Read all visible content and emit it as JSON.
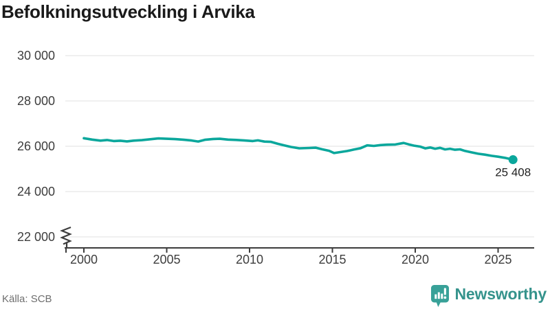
{
  "header": {
    "title": "Befolkningsutveckling i Arvika"
  },
  "footer": {
    "source": "Källa: SCB",
    "brand": "Newsworthy",
    "brand_color": "#35938c",
    "brand_icon": "speech-bubble-bar-chart"
  },
  "chart_data": {
    "type": "line",
    "title": "Befolkningsutveckling i Arvika",
    "xlabel": "",
    "ylabel": "",
    "grid": "horizontal",
    "legend": "none",
    "line_color": "#0ba79c",
    "axis_color": "#3c3c3c",
    "grid_color": "#e2e2e2",
    "x_ticks": [
      2000,
      2005,
      2010,
      2015,
      2020,
      2025
    ],
    "y_ticks": [
      30000,
      28000,
      26000,
      24000,
      22000
    ],
    "y_tick_labels": [
      "30 000",
      "28 000",
      "26 000",
      "24 000",
      "22 000"
    ],
    "axis_break_below": 22000,
    "x_range": [
      1998.9,
      2027.1
    ],
    "series": [
      {
        "name": "Befolkning i Arvika",
        "x": [
          2000.0,
          2000.5,
          2001.0,
          2001.4,
          2001.8,
          2002.2,
          2002.6,
          2003.0,
          2003.5,
          2004.0,
          2004.5,
          2005.0,
          2005.5,
          2006.0,
          2006.5,
          2006.9,
          2007.3,
          2007.8,
          2008.2,
          2008.7,
          2009.2,
          2009.7,
          2010.2,
          2010.5,
          2010.9,
          2011.3,
          2011.7,
          2012.1,
          2012.5,
          2013.0,
          2013.6,
          2014.0,
          2014.4,
          2014.8,
          2015.1,
          2015.5,
          2015.9,
          2016.3,
          2016.7,
          2017.1,
          2017.5,
          2017.9,
          2018.3,
          2018.8,
          2019.3,
          2019.6,
          2019.9,
          2020.3,
          2020.6,
          2020.9,
          2021.2,
          2021.5,
          2021.8,
          2022.1,
          2022.4,
          2022.7,
          2023.0,
          2023.4,
          2023.8,
          2024.2,
          2024.6,
          2025.0,
          2025.4,
          2025.9
        ],
        "values": [
          26355,
          26295,
          26250,
          26275,
          26230,
          26245,
          26215,
          26250,
          26270,
          26310,
          26345,
          26330,
          26315,
          26290,
          26255,
          26210,
          26285,
          26320,
          26330,
          26295,
          26280,
          26255,
          26230,
          26260,
          26205,
          26195,
          26110,
          26040,
          25970,
          25910,
          25925,
          25935,
          25865,
          25800,
          25700,
          25745,
          25790,
          25855,
          25915,
          26040,
          26015,
          26050,
          26070,
          26080,
          26145,
          26085,
          26030,
          25985,
          25905,
          25945,
          25890,
          25930,
          25860,
          25890,
          25845,
          25865,
          25795,
          25730,
          25670,
          25630,
          25580,
          25540,
          25490,
          25408
        ]
      }
    ],
    "end_label": {
      "value": 25408,
      "label": "25 408"
    },
    "source": "Källa: SCB"
  }
}
